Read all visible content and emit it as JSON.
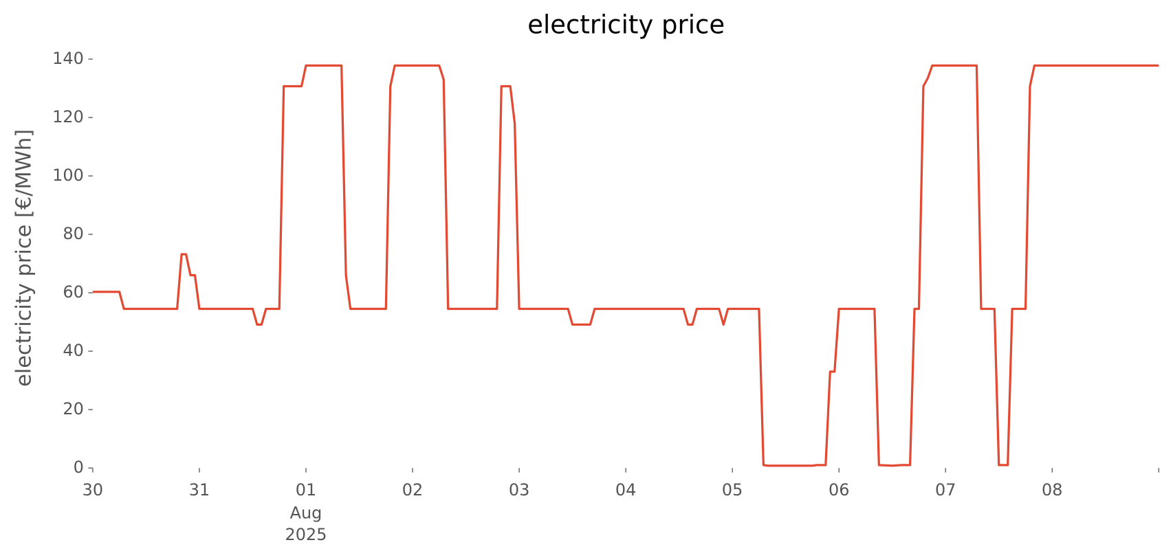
{
  "chart_data": {
    "type": "line",
    "title": "electricity price",
    "ylabel": "electricity price [€/MWh]",
    "xlim": [
      0,
      240
    ],
    "xticks": [
      {
        "value": 0,
        "label": "30"
      },
      {
        "value": 24,
        "label": "31"
      },
      {
        "value": 48,
        "label": "01",
        "sublabel": [
          "Aug",
          "2025"
        ]
      },
      {
        "value": 72,
        "label": "02"
      },
      {
        "value": 96,
        "label": "03"
      },
      {
        "value": 120,
        "label": "04"
      },
      {
        "value": 144,
        "label": "05"
      },
      {
        "value": 168,
        "label": "06"
      },
      {
        "value": 192,
        "label": "07"
      },
      {
        "value": 216,
        "label": "08"
      },
      {
        "value": 240,
        "label": null
      }
    ],
    "ylim": [
      0,
      140
    ],
    "yticks": [
      0,
      20,
      40,
      60,
      80,
      100,
      120,
      140
    ],
    "grid": false,
    "x": [
      0,
      6,
      7,
      19,
      20,
      21,
      22,
      23,
      24,
      36,
      37,
      38,
      39,
      42,
      43,
      47,
      48,
      56,
      57,
      58,
      66,
      67,
      68,
      78,
      79,
      80,
      91,
      92,
      94,
      95,
      96,
      107,
      108,
      112,
      113,
      133,
      134,
      135,
      136,
      141,
      142,
      143,
      150,
      151,
      152,
      162,
      163,
      165,
      166,
      167,
      168,
      176,
      177,
      180,
      182,
      184,
      185,
      186,
      187,
      188,
      189,
      199,
      200,
      203,
      204,
      206,
      207,
      210,
      211,
      212,
      240
    ],
    "series": [
      {
        "color": "#e24a33",
        "values": [
          60.3,
          60.3,
          54.5,
          54.5,
          73.2,
          73.2,
          66,
          66,
          54.5,
          54.5,
          49.1,
          49.1,
          54.5,
          54.5,
          130.7,
          130.7,
          137.8,
          137.8,
          66,
          54.5,
          54.5,
          130.7,
          137.8,
          137.8,
          133,
          54.5,
          54.5,
          130.7,
          130.7,
          118,
          54.5,
          54.5,
          49.1,
          49.1,
          54.5,
          54.5,
          49.1,
          49.1,
          54.5,
          54.5,
          49.1,
          54.5,
          54.5,
          1,
          0.8,
          0.8,
          1,
          1,
          33,
          33,
          54.5,
          54.5,
          1,
          0.8,
          1,
          1,
          54.5,
          54.5,
          130.7,
          133.5,
          137.8,
          137.8,
          54.5,
          54.5,
          1,
          1,
          54.5,
          54.5,
          130.7,
          137.8,
          137.8
        ]
      }
    ]
  }
}
